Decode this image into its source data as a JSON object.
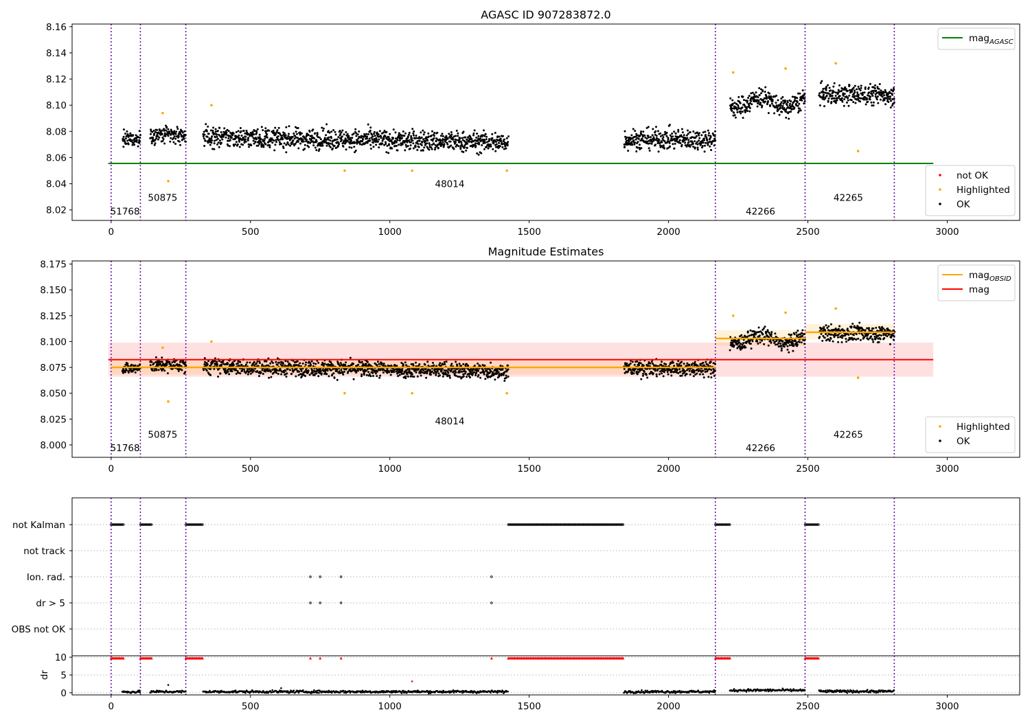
{
  "chart_data": [
    {
      "type": "scatter",
      "title": "AGASC ID 907283872.0",
      "xlabel": "",
      "ylabel": "",
      "xlim": [
        -140,
        3260
      ],
      "ylim": [
        8.012,
        8.162
      ],
      "xticks": [
        0,
        500,
        1000,
        1500,
        2000,
        2500,
        3000
      ],
      "yticks": [
        8.02,
        8.04,
        8.06,
        8.08,
        8.1,
        8.12,
        8.14,
        8.16
      ],
      "ytick_labels": [
        "8.02",
        "8.04",
        "8.06",
        "8.08",
        "8.10",
        "8.12",
        "8.14",
        "8.16"
      ],
      "grid": false,
      "obsid_boundaries": [
        0,
        105,
        268,
        2168,
        2490,
        2810
      ],
      "obsid_labels": [
        {
          "text": "51768",
          "x": 50,
          "y": 8.0165
        },
        {
          "text": "50875",
          "x": 185,
          "y": 8.027
        },
        {
          "text": "48014",
          "x": 1215,
          "y": 8.0375
        },
        {
          "text": "42266",
          "x": 2330,
          "y": 8.0165
        },
        {
          "text": "42265",
          "x": 2645,
          "y": 8.027
        }
      ],
      "lines": [
        {
          "name": "mag_AGASC",
          "color": "#008000",
          "x": [
            -10,
            2950
          ],
          "y": [
            8.0555,
            8.0555
          ]
        }
      ],
      "segments": [
        {
          "x": [
            40,
            105
          ],
          "level": 8.074,
          "spread": 0.005
        },
        {
          "x": [
            140,
            268
          ],
          "level": 8.077,
          "spread": 0.006
        },
        {
          "x": [
            330,
            1425
          ],
          "level": 8.074,
          "spread": 0.007
        },
        {
          "x": [
            1840,
            2168
          ],
          "level": 8.074,
          "spread": 0.007
        },
        {
          "x": [
            2220,
            2490
          ],
          "level": 8.102,
          "spread": 0.007
        },
        {
          "x": [
            2540,
            2810
          ],
          "level": 8.108,
          "spread": 0.007
        }
      ],
      "highlighted_points": [
        {
          "x": 185,
          "y": 8.094
        },
        {
          "x": 205,
          "y": 8.042
        },
        {
          "x": 360,
          "y": 8.1
        },
        {
          "x": 838,
          "y": 8.05
        },
        {
          "x": 1080,
          "y": 8.05
        },
        {
          "x": 1420,
          "y": 8.05
        },
        {
          "x": 2232,
          "y": 8.125
        },
        {
          "x": 2420,
          "y": 8.128
        },
        {
          "x": 2600,
          "y": 8.132
        },
        {
          "x": 2680,
          "y": 8.065
        }
      ],
      "not_ok_points": [],
      "legends": [
        {
          "position": "top-right",
          "entries": [
            {
              "label": "mag",
              "sub": "AGASC",
              "color": "#008000",
              "kind": "line"
            }
          ]
        },
        {
          "position": "lower-right",
          "entries": [
            {
              "label": "not OK",
              "color": "#ff0000",
              "kind": "dot"
            },
            {
              "label": "Highlighted",
              "color": "#ffa500",
              "kind": "dot"
            },
            {
              "label": "OK",
              "color": "#000000",
              "kind": "dot"
            }
          ]
        }
      ]
    },
    {
      "type": "scatter",
      "title": "Magnitude Estimates",
      "xlabel": "",
      "ylabel": "",
      "xlim": [
        -140,
        3260
      ],
      "ylim": [
        7.988,
        8.178
      ],
      "xticks": [
        0,
        500,
        1000,
        1500,
        2000,
        2500,
        3000
      ],
      "yticks": [
        8.0,
        8.025,
        8.05,
        8.075,
        8.1,
        8.125,
        8.15,
        8.175
      ],
      "ytick_labels": [
        "8.000",
        "8.025",
        "8.050",
        "8.075",
        "8.100",
        "8.125",
        "8.150",
        "8.175"
      ],
      "grid": false,
      "obsid_boundaries": [
        0,
        105,
        268,
        2168,
        2490,
        2810
      ],
      "obsid_labels": [
        {
          "text": "51768",
          "x": 50,
          "y": 7.994
        },
        {
          "text": "50875",
          "x": 185,
          "y": 8.007
        },
        {
          "text": "48014",
          "x": 1215,
          "y": 8.02
        },
        {
          "text": "42266",
          "x": 2330,
          "y": 7.994
        },
        {
          "text": "42265",
          "x": 2645,
          "y": 8.007
        }
      ],
      "mag_band": {
        "x": [
          -10,
          2950
        ],
        "center": 8.0825,
        "low": 8.066,
        "high": 8.099,
        "color": "#ff0000"
      },
      "obsid_mag": [
        {
          "x": [
            0,
            2168
          ],
          "y": 8.075,
          "low": 8.068,
          "high": 8.082
        },
        {
          "x": [
            2168,
            2490
          ],
          "y": 8.103,
          "low": 8.096,
          "high": 8.111
        },
        {
          "x": [
            2490,
            2810
          ],
          "y": 8.109,
          "low": 8.102,
          "high": 8.117
        }
      ],
      "segments": [
        {
          "x": [
            40,
            105
          ],
          "level": 8.074,
          "spread": 0.005
        },
        {
          "x": [
            140,
            268
          ],
          "level": 8.077,
          "spread": 0.006
        },
        {
          "x": [
            330,
            1425
          ],
          "level": 8.074,
          "spread": 0.007
        },
        {
          "x": [
            1840,
            2168
          ],
          "level": 8.074,
          "spread": 0.007
        },
        {
          "x": [
            2220,
            2490
          ],
          "level": 8.102,
          "spread": 0.007
        },
        {
          "x": [
            2540,
            2810
          ],
          "level": 8.108,
          "spread": 0.007
        }
      ],
      "highlighted_points": [
        {
          "x": 185,
          "y": 8.094
        },
        {
          "x": 205,
          "y": 8.042
        },
        {
          "x": 360,
          "y": 8.1
        },
        {
          "x": 838,
          "y": 8.05
        },
        {
          "x": 1080,
          "y": 8.05
        },
        {
          "x": 1420,
          "y": 8.05
        },
        {
          "x": 2232,
          "y": 8.125
        },
        {
          "x": 2420,
          "y": 8.128
        },
        {
          "x": 2600,
          "y": 8.132
        },
        {
          "x": 2680,
          "y": 8.065
        }
      ],
      "legends": [
        {
          "position": "top-right",
          "entries": [
            {
              "label": "mag",
              "sub": "OBSID",
              "color": "#ffa500",
              "kind": "line"
            },
            {
              "label": "mag",
              "sub": "",
              "color": "#ff0000",
              "kind": "line"
            }
          ]
        },
        {
          "position": "lower-right",
          "entries": [
            {
              "label": "Highlighted",
              "color": "#ffa500",
              "kind": "dot"
            },
            {
              "label": "OK",
              "color": "#000000",
              "kind": "dot"
            }
          ]
        }
      ]
    },
    {
      "type": "scatter",
      "title": "",
      "xlabel": "",
      "xlim": [
        -140,
        3260
      ],
      "xticks": [
        0,
        500,
        1000,
        1500,
        2000,
        2500,
        3000
      ],
      "obsid_boundaries": [
        0,
        105,
        268,
        2168,
        2490,
        2810
      ],
      "flag_rows": [
        "not Kalman",
        "not track",
        "Ion. rad.",
        "dr > 5",
        "OBS not OK"
      ],
      "flags": {
        "not Kalman": [
          [
            0,
            45
          ],
          [
            105,
            145
          ],
          [
            268,
            330
          ],
          [
            1425,
            1840
          ],
          [
            2168,
            2220
          ],
          [
            2490,
            2540
          ]
        ],
        "not track": [],
        "Ion. rad.": [
          [
            715,
            715
          ],
          [
            750,
            750
          ],
          [
            825,
            825
          ],
          [
            1365,
            1365
          ]
        ],
        "dr > 5": [
          [
            715,
            715
          ],
          [
            750,
            750
          ],
          [
            825,
            825
          ],
          [
            1365,
            1365
          ]
        ],
        "OBS not OK": []
      },
      "dr_ylabel": "dr",
      "dr_ylim": [
        -0.6,
        10.4
      ],
      "dr_yticks": [
        0,
        5,
        10
      ],
      "dr_ytick_labels": [
        "0",
        "5",
        "10"
      ],
      "dr_clip_value": 10,
      "dr_high": [
        [
          0,
          45
        ],
        [
          105,
          145
        ],
        [
          268,
          330
        ],
        [
          715,
          715
        ],
        [
          750,
          750
        ],
        [
          825,
          825
        ],
        [
          1365,
          1365
        ],
        [
          1425,
          1840
        ],
        [
          2168,
          2220
        ],
        [
          2490,
          2540
        ]
      ],
      "dr_low": [
        {
          "x": [
            40,
            105
          ],
          "level": 0.25
        },
        {
          "x": [
            140,
            268
          ],
          "level": 0.3
        },
        {
          "x": [
            330,
            1425
          ],
          "level": 0.3
        },
        {
          "x": [
            1840,
            2168
          ],
          "level": 0.3
        },
        {
          "x": [
            2220,
            2490
          ],
          "level": 0.7
        },
        {
          "x": [
            2540,
            2810
          ],
          "level": 0.4
        }
      ],
      "dr_outliers": [
        {
          "x": 205,
          "y": 2.2
        },
        {
          "x": 610,
          "y": 1.3
        },
        {
          "x": 1080,
          "y": 3.2
        }
      ]
    }
  ]
}
